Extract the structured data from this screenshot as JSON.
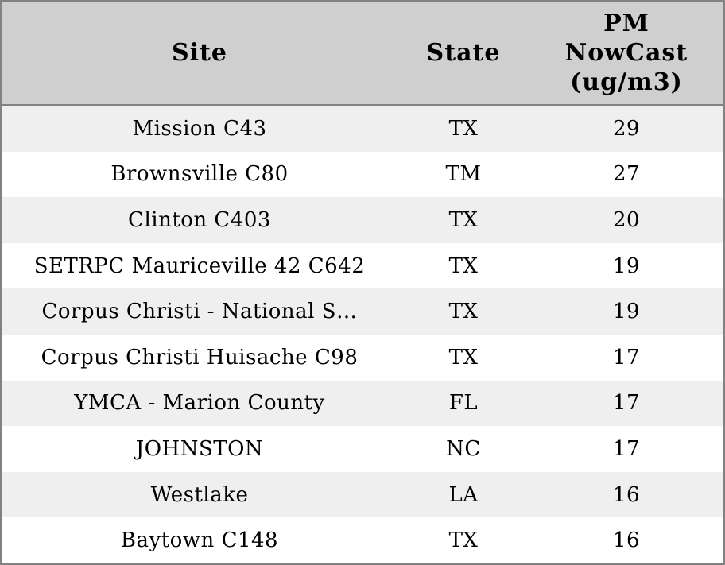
{
  "table": {
    "header": {
      "site": "Site",
      "state": "State",
      "pm_nowcast": "PM NowCast (ug/m3)"
    },
    "rows": [
      {
        "site": "Mission C43",
        "state": "TX",
        "pm_nowcast": "29"
      },
      {
        "site": "Brownsville C80",
        "state": "TM",
        "pm_nowcast": "27"
      },
      {
        "site": "Clinton C403",
        "state": "TX",
        "pm_nowcast": "20"
      },
      {
        "site": "SETRPC Mauriceville 42 C642",
        "state": "TX",
        "pm_nowcast": "19"
      },
      {
        "site": "Corpus Christi - National S…",
        "state": "TX",
        "pm_nowcast": "19"
      },
      {
        "site": "Corpus Christi Huisache C98",
        "state": "TX",
        "pm_nowcast": "17"
      },
      {
        "site": "YMCA - Marion County",
        "state": "FL",
        "pm_nowcast": "17"
      },
      {
        "site": "JOHNSTON",
        "state": "NC",
        "pm_nowcast": "17"
      },
      {
        "site": "Westlake",
        "state": "LA",
        "pm_nowcast": "16"
      },
      {
        "site": "Baytown C148",
        "state": "TX",
        "pm_nowcast": "16"
      }
    ]
  },
  "colors": {
    "header_bg": "#cfcfcf",
    "row_stripe": "#efefef",
    "row_plain": "#ffffff",
    "border": "#828282",
    "text": "#000000"
  }
}
